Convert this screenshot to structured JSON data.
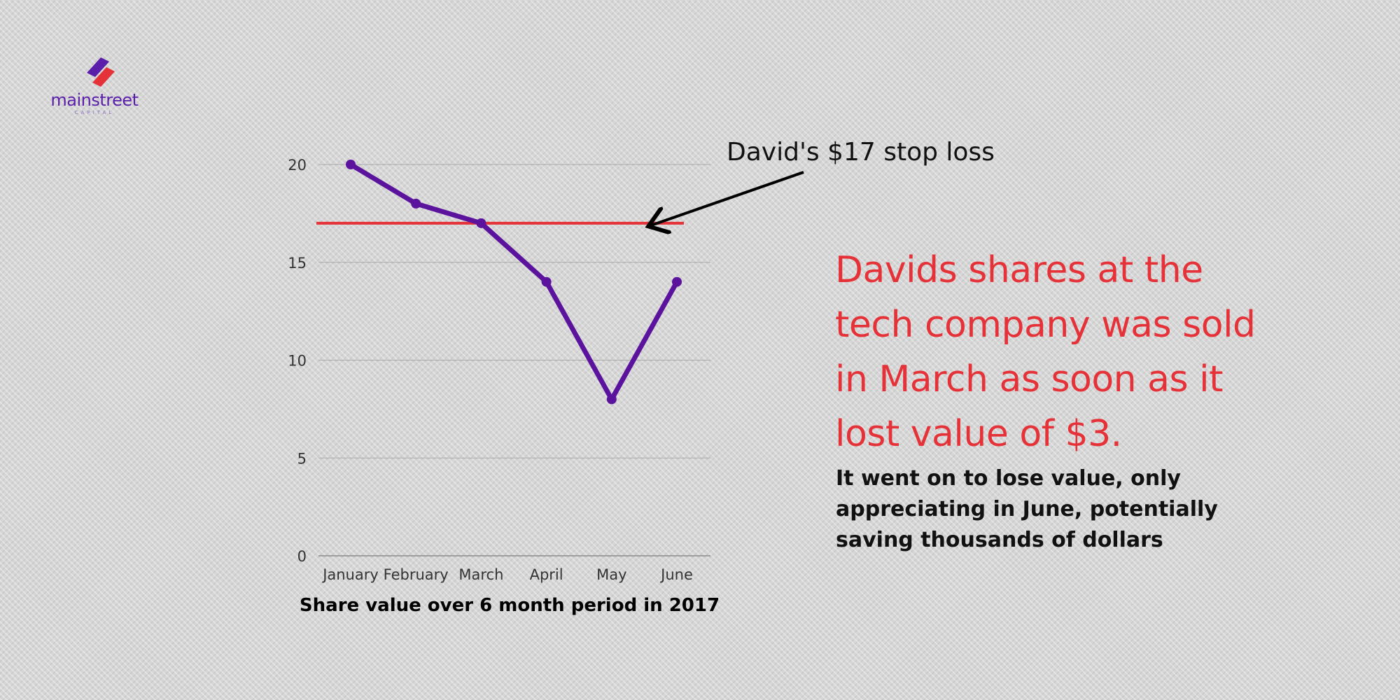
{
  "logo": {
    "wordmark": "mainstreet",
    "tagline": "CAPITAL"
  },
  "chart_data": {
    "type": "line",
    "categories": [
      "January",
      "February",
      "March",
      "April",
      "May",
      "June"
    ],
    "values": [
      20,
      18,
      17,
      14,
      8,
      14
    ],
    "xlabel": "Share value over 6 month period in 2017",
    "ylabel": "",
    "ylim": [
      0,
      20
    ],
    "yticks": [
      0,
      5,
      10,
      15,
      20
    ],
    "grid": true,
    "reference_line": {
      "value": 17,
      "color": "#e53238"
    },
    "annotation": "David's $17 stop loss",
    "line_color": "#5b139e"
  },
  "headline": "Davids shares at the tech company was sold in March as soon as it lost value of $3.",
  "subtext": "It went on to lose value, only appreciating in June, potentially saving thousands of dollars",
  "colors": {
    "accent": "#e53238",
    "series": "#5b139e",
    "background": "#d6d6d6"
  }
}
